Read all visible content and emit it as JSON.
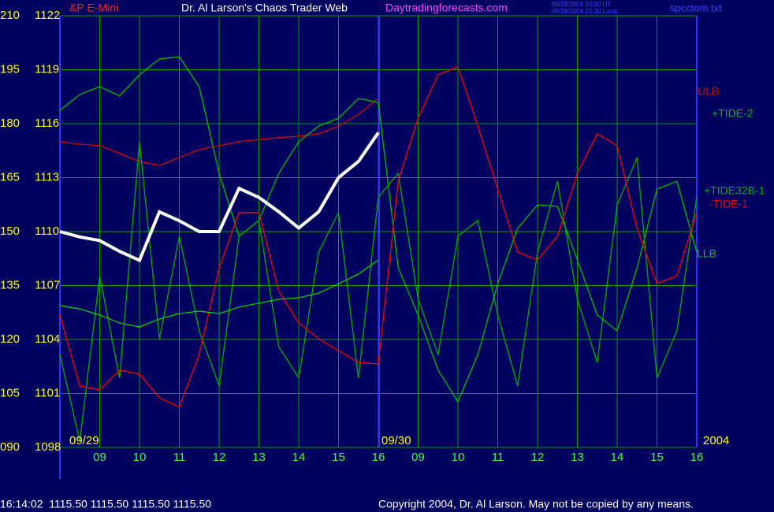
{
  "chart_data": {
    "type": "line",
    "title": "Dr. Al Larson's Chaos Trader Web",
    "site": "Daytradingforecasts.com",
    "instrument": "&P E-Mini",
    "timestamps": [
      "09/29/2004 20:30 UT",
      "09/29/2004 15:30 Local"
    ],
    "file": "spcctom.txt",
    "dates": [
      "09/29",
      "09/30",
      "2004"
    ],
    "status": "16:14:02  1115.50 1115.50 1115.50 1115.50",
    "copyright": "Copyright 2004, Dr. Al Larson. May not be copied by any means.",
    "x": [
      0,
      0.5,
      1,
      1.5,
      2,
      2.5,
      3,
      3.5,
      4,
      4.5,
      5,
      5.5,
      6,
      6.5,
      7,
      7.5,
      8,
      8.5,
      9,
      9.5,
      10,
      10.5,
      11,
      11.5,
      12,
      12.5,
      13,
      13.5,
      14,
      14.5,
      15,
      15.5,
      16
    ],
    "xlim": [
      0,
      16
    ],
    "xticks": [
      {
        "value": 1,
        "label": "09"
      },
      {
        "value": 2,
        "label": "10"
      },
      {
        "value": 3,
        "label": "11"
      },
      {
        "value": 4,
        "label": "12"
      },
      {
        "value": 5,
        "label": "13"
      },
      {
        "value": 6,
        "label": "14"
      },
      {
        "value": 7,
        "label": "15"
      },
      {
        "value": 8,
        "label": "16"
      },
      {
        "value": 9,
        "label": "09"
      },
      {
        "value": 10,
        "label": "10"
      },
      {
        "value": 11,
        "label": "11"
      },
      {
        "value": 12,
        "label": "12"
      },
      {
        "value": 13,
        "label": "13"
      },
      {
        "value": 14,
        "label": "14"
      },
      {
        "value": 15,
        "label": "15"
      },
      {
        "value": 16,
        "label": "16"
      }
    ],
    "ylim": [
      90,
      210
    ],
    "yticks": [
      {
        "value": 90,
        "label": "090"
      },
      105,
      120,
      135,
      150,
      165,
      180,
      195,
      210
    ],
    "y2lim": [
      1098,
      1122
    ],
    "y2ticks": [
      1098,
      1101,
      1104,
      1107,
      1110,
      1113,
      1116,
      1119,
      1122
    ],
    "grid": true,
    "series": [
      {
        "name": "ULB",
        "color": "#e00000",
        "values": [
          175.0,
          174.3,
          173.9,
          171.7,
          169.5,
          168.4,
          170.6,
          172.8,
          173.9,
          175.0,
          175.6,
          176.1,
          176.5,
          177.2,
          179.3,
          182.6,
          187.0,
          null,
          null,
          null,
          null,
          null,
          null,
          null,
          null,
          null,
          null,
          null,
          null,
          null,
          null,
          null,
          null
        ]
      },
      {
        "name": "+TIDE-2",
        "color": "#00c000",
        "values": [
          183.7,
          188.1,
          190.3,
          187.7,
          193.6,
          198.0,
          198.6,
          190.3,
          166.2,
          148.7,
          153.1,
          166.2,
          175.0,
          179.3,
          181.5,
          187.0,
          185.9,
          139.9,
          126.8,
          111.5,
          102.7,
          115.8,
          135.5,
          150.9,
          157.4,
          157.0,
          142.1,
          126.8,
          122.4,
          139.9,
          161.8,
          164.0,
          144.3
        ]
      },
      {
        "name": "+TIDE32B-1",
        "color": "#00b000",
        "values": [
          115.8,
          91.7,
          137.7,
          109.3,
          175.0,
          120.2,
          148.7,
          122.4,
          107.1,
          148.7,
          153.1,
          118.0,
          109.3,
          144.3,
          155.3,
          109.3,
          159.6,
          166.2,
          131.2,
          115.8,
          148.7,
          153.1,
          126.8,
          107.1,
          144.3,
          164.0,
          131.2,
          113.6,
          157.4,
          170.6,
          109.3,
          122.4,
          159.6
        ]
      },
      {
        "name": "-TIDE-1",
        "color": "#ff0000",
        "values": [
          126.8,
          107.1,
          106.0,
          111.5,
          110.4,
          103.8,
          101.2,
          115.8,
          139.9,
          155.3,
          155.3,
          133.4,
          124.6,
          120.2,
          116.9,
          113.6,
          113.2,
          164.0,
          181.5,
          193.6,
          195.8,
          179.3,
          161.8,
          144.3,
          142.1,
          148.7,
          166.2,
          177.2,
          173.9,
          150.9,
          135.5,
          137.7,
          155.3
        ]
      },
      {
        "name": "LLB",
        "color": "#00d000",
        "values": [
          129.4,
          128.5,
          126.8,
          124.6,
          123.5,
          125.7,
          127.2,
          127.9,
          127.2,
          129.0,
          130.1,
          131.2,
          131.6,
          132.9,
          135.5,
          138.2,
          142.1,
          null,
          null,
          null,
          null,
          null,
          null,
          null,
          null,
          null,
          null,
          null,
          null,
          null,
          null,
          null,
          null
        ]
      },
      {
        "color": "#ffffff",
        "axis": "y2",
        "values": [
          1110.0,
          1109.7,
          1109.5,
          1108.9,
          1108.4,
          1111.1,
          1110.6,
          1110.0,
          1110.0,
          1112.4,
          1111.9,
          1111.1,
          1110.2,
          1111.1,
          1113.0,
          1113.9,
          1115.5,
          null,
          null,
          null,
          null,
          null,
          null,
          null,
          null,
          null,
          null,
          null,
          null,
          null,
          null,
          null,
          null
        ]
      }
    ]
  }
}
